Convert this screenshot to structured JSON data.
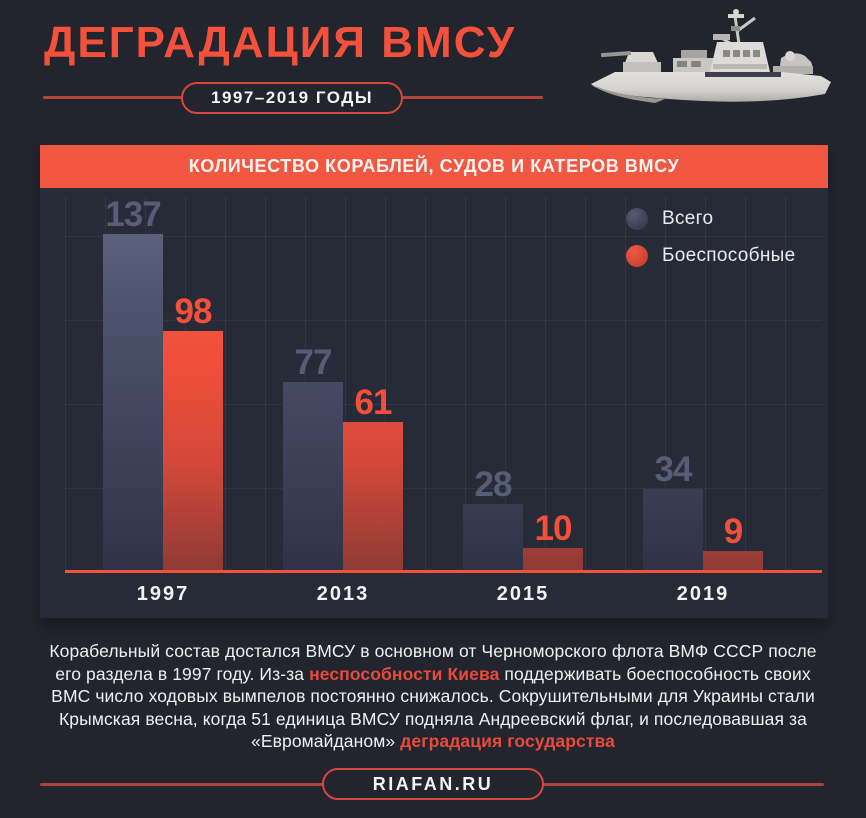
{
  "page": {
    "title": "ДЕГРАДАЦИЯ ВМСУ",
    "period_badge": "1997–2019 ГОДЫ",
    "accent_color": "#f2513c",
    "background_color": "#22242e"
  },
  "chart_data": {
    "type": "bar",
    "title": "КОЛИЧЕСТВО КОРАБЛЕЙ, СУДОВ И КАТЕРОВ ВМСУ",
    "categories": [
      "1997",
      "2013",
      "2015",
      "2019"
    ],
    "series": [
      {
        "name": "Всего",
        "color": "#4b506a",
        "values": [
          137,
          77,
          28,
          34
        ]
      },
      {
        "name": "Боеспособные",
        "color": "#f04e3a",
        "values": [
          98,
          61,
          10,
          9
        ]
      }
    ],
    "ylim": [
      0,
      140
    ],
    "grid": true,
    "legend_position": "top-right",
    "baseline_color": "#f2513c"
  },
  "article": {
    "segments": [
      {
        "text": "Корабельный состав достался ВМСУ в основном от Черноморского флота ВМФ СССР после его раздела в 1997 году. Из-за ",
        "highlight": false
      },
      {
        "text": "неспособности Киева",
        "highlight": true
      },
      {
        "text": " поддерживать боеспособность своих ВМС число ходовых вымпелов постоянно снижалось. Сокрушительными для Украины стали Крымская весна, когда 51 единица ВМСУ подняла Андреевский флаг, и последовавшая за «Евромайданом» ",
        "highlight": false
      },
      {
        "text": "деградация государства",
        "highlight": true
      }
    ]
  },
  "footer": {
    "site": "RIAFAN.RU"
  },
  "icons": {
    "ship": "warship-illustration"
  }
}
